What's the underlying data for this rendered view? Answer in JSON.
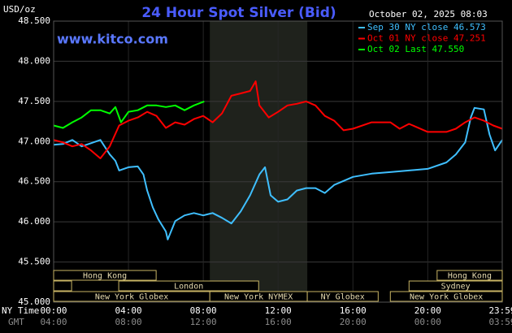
{
  "chart_data": {
    "type": "line",
    "title": "24 Hour Spot Silver (Bid)",
    "timestamp": "October 02, 2025 08:03",
    "watermark": "www.kitco.com",
    "y_label": "USD/oz",
    "x_label": "NY Time",
    "x2_label": "GMT",
    "ylim": [
      45.0,
      48.5
    ],
    "yticks": [
      {
        "value": 45.0,
        "label": "45.000"
      },
      {
        "value": 45.5,
        "label": "45.500"
      },
      {
        "value": 46.0,
        "label": "46.000"
      },
      {
        "value": 46.5,
        "label": "46.500"
      },
      {
        "value": 47.0,
        "label": "47.000"
      },
      {
        "value": 47.5,
        "label": "47.500"
      },
      {
        "value": 48.0,
        "label": "48.000"
      },
      {
        "value": 48.5,
        "label": "48.500"
      }
    ],
    "xlim": [
      0,
      23.983
    ],
    "xticks": [
      {
        "value": 0,
        "label": "00:00"
      },
      {
        "value": 4,
        "label": "04:00"
      },
      {
        "value": 8,
        "label": "08:00"
      },
      {
        "value": 12,
        "label": "12:00"
      },
      {
        "value": 16,
        "label": "16:00"
      },
      {
        "value": 20,
        "label": "20:00"
      },
      {
        "value": 23.983,
        "label": "23:59"
      }
    ],
    "xticks2": [
      {
        "value": 0,
        "label": "04:00"
      },
      {
        "value": 4,
        "label": "08:00"
      },
      {
        "value": 8,
        "label": "12:00"
      },
      {
        "value": 12,
        "label": "16:00"
      },
      {
        "value": 16,
        "label": "20:00"
      },
      {
        "value": 20,
        "label": "00:00"
      },
      {
        "value": 23.983,
        "label": "03:59"
      }
    ],
    "grid": true,
    "legend": "top-right",
    "series": [
      {
        "name": "Sep 30 NY close 46.573",
        "color": "#3fbfff",
        "x": [
          0,
          0.5,
          1,
          1.5,
          2,
          2.5,
          3,
          3.3,
          3.5,
          4,
          4.5,
          4.8,
          5,
          5.3,
          5.6,
          6,
          6.1,
          6.5,
          7,
          7.5,
          8,
          8.5,
          9,
          9.5,
          10,
          10.5,
          11,
          11.3,
          11.6,
          12,
          12.5,
          13,
          13.5,
          14,
          14.5,
          15,
          16,
          17,
          18,
          19,
          20,
          21,
          21.5,
          22,
          22.3,
          22.5,
          23,
          23.3,
          23.6,
          23.983
        ],
        "values": [
          46.96,
          46.97,
          47.02,
          46.94,
          46.98,
          47.02,
          46.84,
          46.76,
          46.64,
          46.68,
          46.69,
          46.59,
          46.39,
          46.18,
          46.03,
          45.88,
          45.78,
          46.01,
          46.08,
          46.11,
          46.08,
          46.11,
          46.05,
          45.98,
          46.13,
          46.33,
          46.59,
          46.68,
          46.33,
          46.25,
          46.28,
          46.39,
          46.42,
          46.42,
          46.36,
          46.46,
          46.56,
          46.6,
          46.62,
          46.64,
          46.66,
          46.74,
          46.84,
          46.99,
          47.3,
          47.42,
          47.4,
          47.09,
          46.89,
          47.02
        ]
      },
      {
        "name": "Oct 01 NY close 47.251",
        "color": "#ff0000",
        "x": [
          0,
          0.5,
          1,
          1.5,
          2,
          2.5,
          3,
          3.5,
          4,
          4.5,
          5,
          5.5,
          6,
          6.5,
          7,
          7.5,
          8,
          8.5,
          9,
          9.5,
          10,
          10.5,
          10.8,
          11,
          11.5,
          12,
          12.5,
          13,
          13.5,
          14,
          14.5,
          15,
          15.5,
          16,
          17,
          18,
          18.5,
          19,
          20,
          20.5,
          21,
          21.5,
          22,
          22.5,
          23,
          23.5,
          23.983
        ],
        "values": [
          47.02,
          46.99,
          46.94,
          46.97,
          46.89,
          46.79,
          46.94,
          47.2,
          47.26,
          47.3,
          47.37,
          47.32,
          47.17,
          47.24,
          47.21,
          47.28,
          47.32,
          47.24,
          47.35,
          47.57,
          47.6,
          47.63,
          47.75,
          47.45,
          47.3,
          47.37,
          47.45,
          47.47,
          47.5,
          47.45,
          47.32,
          47.26,
          47.14,
          47.16,
          47.24,
          47.24,
          47.16,
          47.22,
          47.12,
          47.12,
          47.12,
          47.16,
          47.24,
          47.3,
          47.26,
          47.2,
          47.16
        ]
      },
      {
        "name": "Oct 02 Last 47.550",
        "color": "#00ff00",
        "x": [
          0,
          0.5,
          1,
          1.5,
          2,
          2.5,
          3,
          3.3,
          3.6,
          4,
          4.5,
          5,
          5.5,
          6,
          6.5,
          7,
          7.5,
          8.05
        ],
        "values": [
          47.2,
          47.17,
          47.24,
          47.3,
          47.39,
          47.39,
          47.35,
          47.43,
          47.24,
          47.37,
          47.39,
          47.45,
          47.45,
          47.43,
          47.45,
          47.39,
          47.45,
          47.5
        ]
      }
    ],
    "sessions": [
      {
        "label": "Hong Kong",
        "row": 0,
        "start": 0,
        "end": 5.48
      },
      {
        "label": "Hong Kong",
        "row": 0,
        "start": 20.5,
        "end": 23.983
      },
      {
        "label": null,
        "row": 1,
        "start": 0,
        "end": 0.96
      },
      {
        "label": "London",
        "row": 1,
        "start": 3.48,
        "end": 10.96
      },
      {
        "label": "Sydney",
        "row": 1,
        "start": 19,
        "end": 23.983
      },
      {
        "label": "New York Globex",
        "row": 2,
        "start": 0,
        "end": 8.35
      },
      {
        "label": "New York NYMEX",
        "row": 2,
        "start": 8.35,
        "end": 13.56,
        "shaded": true
      },
      {
        "label": "NY Globex",
        "row": 2,
        "start": 13.56,
        "end": 17.35
      },
      {
        "label": "New York Globex",
        "row": 2,
        "start": 18,
        "end": 23.983
      }
    ]
  }
}
